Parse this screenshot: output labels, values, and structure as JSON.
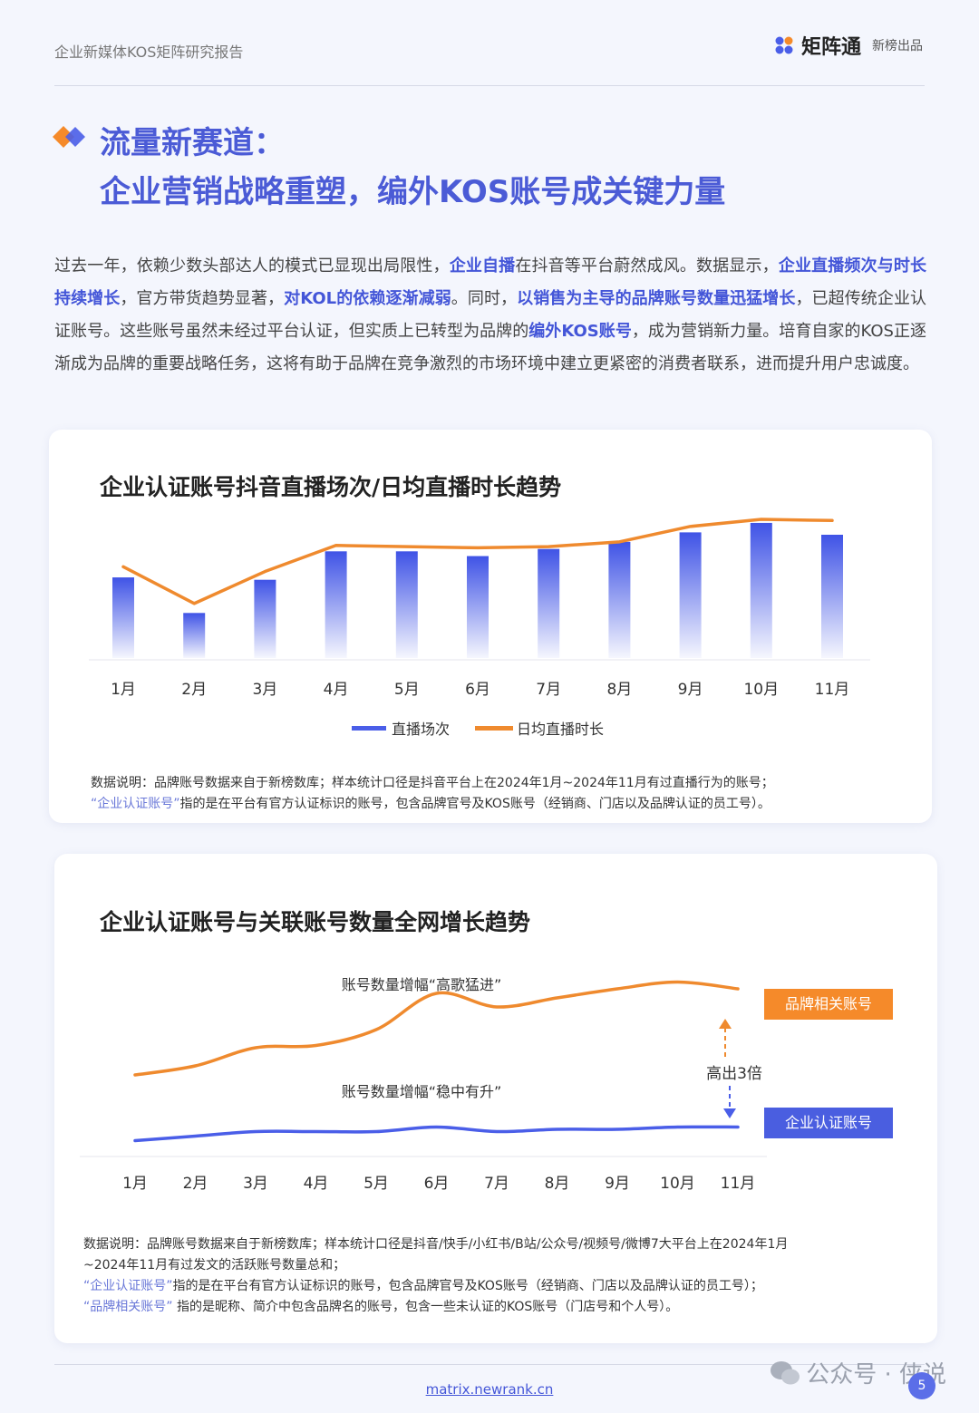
{
  "header": {
    "report_title": "企业新媒体KOS矩阵研究报告",
    "brand_name": "矩阵通",
    "brand_sub": "新榜出品"
  },
  "title": {
    "line1": "流量新赛道：",
    "line2": "企业营销战略重塑，编外KOS账号成关键力量"
  },
  "intro": {
    "p1": "过去一年，依赖少数头部达人的模式已显现出局限性，",
    "h1": "企业自播",
    "p2": "在抖音等平台蔚然成风。数据显示，",
    "h2": "企业直播频次与时长持续增长",
    "p3": "，官方带货趋势显著，",
    "h3": "对KOL的依赖逐渐减弱",
    "p4": "。同时，",
    "h4": "以销售为主导的品牌账号数量迅猛增长",
    "p5": "，已超传统企业认证账号。这些账号虽然未经过平台认证，但实质上已转型为品牌的",
    "h5": "编外KOS账号",
    "p6": "，成为营销新力量。培育自家的KOS正逐渐成为品牌的重要战略任务，这将有助于品牌在竞争激烈的市场环境中建立更紧密的消费者联系，进而提升用户忠诚度。"
  },
  "chart_data": [
    {
      "type": "bar",
      "title": "企业认证账号抖音直播场次/日均直播时长趋势",
      "categories": [
        "1月",
        "2月",
        "3月",
        "4月",
        "5月",
        "6月",
        "7月",
        "8月",
        "9月",
        "10月",
        "11月"
      ],
      "series": [
        {
          "name": "直播场次",
          "type": "bar",
          "values": [
            68,
            38,
            66,
            90,
            90,
            86,
            92,
            98,
            106,
            114,
            104
          ]
        },
        {
          "name": "日均直播时长",
          "type": "line",
          "values": [
            77,
            46,
            73,
            95,
            94,
            93,
            94,
            98,
            111,
            117,
            116
          ]
        }
      ],
      "ylim": [
        0,
        130
      ],
      "legend": "bottom-center",
      "note_line1": "数据说明：品牌账号数据来自于新榜数库；样本统计口径是抖音平台上在2024年1月~2024年11月有过直播行为的账号；",
      "note_q": "“企业认证账号”",
      "note_line2": "指的是在平台有官方认证标识的账号，包含品牌官号及KOS账号（经销商、门店以及品牌认证的员工号）。"
    },
    {
      "type": "line",
      "title": "企业认证账号与关联账号数量全网增长趋势",
      "categories": [
        "1月",
        "2月",
        "3月",
        "4月",
        "5月",
        "6月",
        "7月",
        "8月",
        "9月",
        "10月",
        "11月"
      ],
      "series": [
        {
          "name": "品牌相关账号",
          "values": [
            36,
            40,
            48,
            49,
            56,
            72,
            66,
            70,
            74,
            77,
            74
          ]
        },
        {
          "name": "企业认证账号",
          "values": [
            7,
            9,
            11,
            11,
            11,
            13,
            11,
            12,
            12,
            13,
            13
          ]
        }
      ],
      "ylim": [
        0,
        100
      ],
      "annotations": {
        "upper": "账号数量增幅“高歌猛进”",
        "lower": "账号数量增幅“稳中有升”",
        "gap": "高出3倍"
      },
      "note_line1": "数据说明：品牌账号数据来自于新榜数库；样本统计口径是抖音/快手/小红书/B站/公众号/视频号/微博7大平台上在2024年1月",
      "note_line2": "~2024年11月有过发文的活跃账号数量总和；",
      "note_q1": "“企业认证账号”",
      "note_line3": "指的是在平台有官方认证标识的账号，包含品牌官号及KOS账号（经销商、门店以及品牌认证的员工号）；",
      "note_q2": "“品牌相关账号”",
      "note_line4": " 指的是昵称、简介中包含品牌名的账号，包含一些未认证的KOS账号（门店号和个人号）。"
    }
  ],
  "colors": {
    "accent_blue": "#4456d8",
    "bar_blue": "#4a5ee8",
    "line_orange": "#ef8a2e",
    "tag_orange": "#f58a2a",
    "tag_blue": "#4a5ee0"
  },
  "footer": {
    "link": "matrix.newrank.cn",
    "watermark": "公众号 · 侠说",
    "page": "5"
  }
}
